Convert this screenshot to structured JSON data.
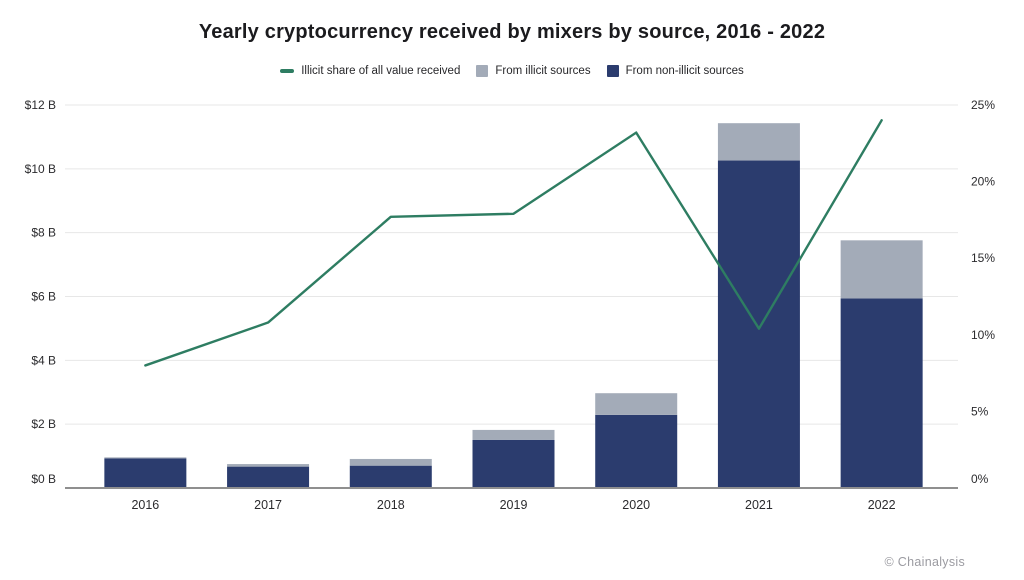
{
  "page": {
    "title": "Yearly cryptocurrency received by mixers by source, 2016 - 2022",
    "watermark": "© Chainalysis"
  },
  "legend": {
    "items": [
      {
        "label": "Illicit share of all value received",
        "type": "line",
        "color": "#2e7d62"
      },
      {
        "label": "From illicit sources",
        "type": "square",
        "color": "#a3abb8"
      },
      {
        "label": "From non-illicit sources",
        "type": "square",
        "color": "#2b3c6e"
      }
    ]
  },
  "chart_data": {
    "type": "combo-stacked-bar-line",
    "title": "Yearly cryptocurrency received by mixers by source, 2016 - 2022",
    "categories": [
      "2016",
      "2017",
      "2018",
      "2019",
      "2020",
      "2021",
      "2022"
    ],
    "series": [
      {
        "name": "From non-illicit sources",
        "kind": "bar",
        "stack": "total-received",
        "axis": "left",
        "unit": "USD billions",
        "color": "#2b3c6e",
        "values": [
          0.93,
          0.67,
          0.7,
          1.51,
          2.29,
          10.26,
          5.94
        ]
      },
      {
        "name": "From illicit sources",
        "kind": "bar",
        "stack": "total-received",
        "axis": "left",
        "unit": "USD billions",
        "color": "#a3abb8",
        "values": [
          0.03,
          0.08,
          0.21,
          0.31,
          0.68,
          1.17,
          1.82
        ]
      },
      {
        "name": "Illicit share of all value received",
        "kind": "line",
        "axis": "right",
        "unit": "percent",
        "color": "#2e7d62",
        "values": [
          8.0,
          10.8,
          17.7,
          17.9,
          23.2,
          10.4,
          24.0
        ]
      }
    ],
    "left_axis": {
      "min": 0,
      "max": 12,
      "tick_step": 2,
      "tick_labels": [
        "$0 B",
        "$2 B",
        "$4 B",
        "$6 B",
        "$8 B",
        "$10 B",
        "$12 B"
      ]
    },
    "right_axis": {
      "min": 0,
      "max": 25,
      "tick_step": 5,
      "tick_labels": [
        "0%",
        "5%",
        "10%",
        "15%",
        "20%",
        "25%"
      ]
    },
    "grid": "horizontal",
    "legend_position": "top",
    "colors": {
      "gridline": "#e7e7e7",
      "baseline": "#8f8f8f",
      "tick_text": "#2b2b2e"
    }
  }
}
